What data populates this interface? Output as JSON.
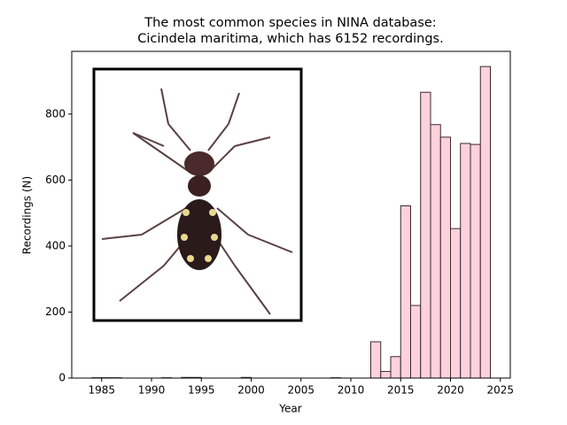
{
  "chart_data": {
    "type": "histogram",
    "title": [
      "The most common species in NINA database:",
      "Cicindela maritima, which has 6152 recordings."
    ],
    "x_label": "Year",
    "y_label": "Recordings (N)",
    "bins": [
      1984,
      1985,
      1986,
      1987,
      1988,
      1989,
      1990,
      1991,
      1992,
      1993,
      1994,
      1995,
      1996,
      1997,
      1998,
      1999,
      2000,
      2001,
      2002,
      2003,
      2004,
      2005,
      2006,
      2007,
      2008,
      2009,
      2010,
      2011,
      2012,
      2013,
      2014,
      2015,
      2016,
      2017,
      2018,
      2019,
      2020,
      2021,
      2022,
      2023,
      2024
    ],
    "values": [
      1,
      1,
      1,
      0,
      0,
      0,
      0,
      1,
      0,
      2,
      2,
      0,
      0,
      0,
      0,
      2,
      0,
      0,
      0,
      0,
      0,
      0,
      0,
      0,
      1,
      0,
      0,
      0,
      110,
      20,
      65,
      522,
      220,
      866,
      768,
      730,
      453,
      711,
      708,
      944
    ],
    "color": "#ffd1dc",
    "edgecolor": "#3a2a2a",
    "xlim": [
      1982,
      2026
    ],
    "ylim": [
      0,
      990
    ],
    "xticks": [
      1985,
      1990,
      1995,
      2000,
      2005,
      2010,
      2015,
      2020,
      2025
    ],
    "yticks": [
      0,
      200,
      400,
      600,
      800
    ]
  }
}
